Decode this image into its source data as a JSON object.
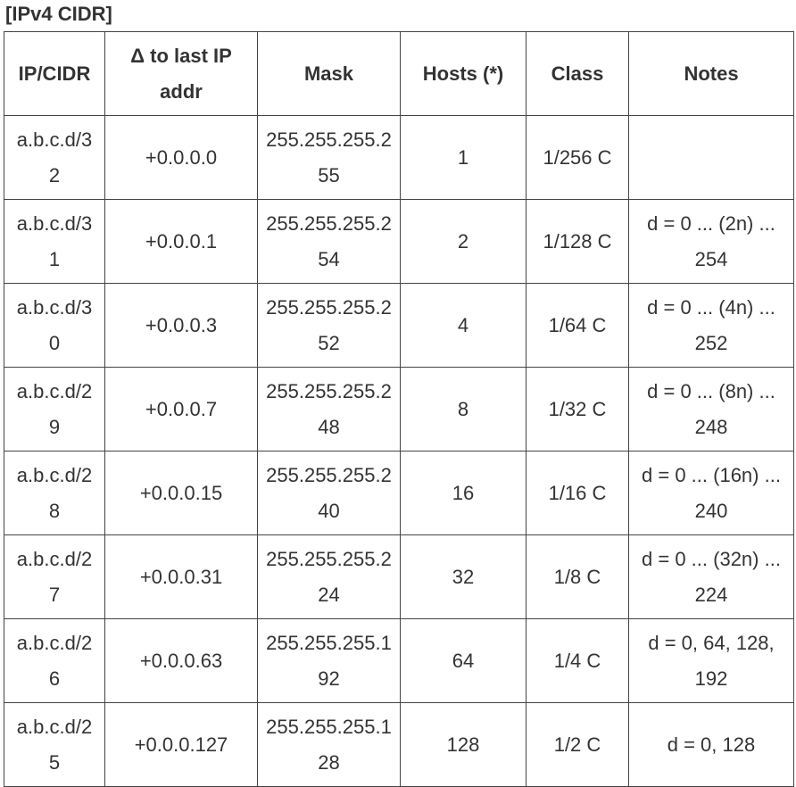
{
  "title": "[IPv4 CIDR]",
  "table": {
    "header": [
      "IP/CIDR",
      "Δ to last IP addr",
      "Mask",
      "Hosts (*)",
      "Class",
      "Notes"
    ],
    "rows": [
      [
        "a.b.c.d/32",
        "+0.0.0.0",
        "255.255.255.255",
        "1",
        "1/256 C",
        ""
      ],
      [
        "a.b.c.d/31",
        "+0.0.0.1",
        "255.255.255.254",
        "2",
        "1/128 C",
        "d = 0 ... (2n) ... 254"
      ],
      [
        "a.b.c.d/30",
        "+0.0.0.3",
        "255.255.255.252",
        "4",
        "1/64 C",
        "d = 0 ... (4n) ... 252"
      ],
      [
        "a.b.c.d/29",
        "+0.0.0.7",
        "255.255.255.248",
        "8",
        "1/32 C",
        "d = 0 ... (8n) ... 248"
      ],
      [
        "a.b.c.d/28",
        "+0.0.0.15",
        "255.255.255.240",
        "16",
        "1/16 C",
        "d = 0 ... (16n) ... 240"
      ],
      [
        "a.b.c.d/27",
        "+0.0.0.31",
        "255.255.255.224",
        "32",
        "1/8 C",
        "d = 0 ... (32n) ... 224"
      ],
      [
        "a.b.c.d/26",
        "+0.0.0.63",
        "255.255.255.192",
        "64",
        "1/4 C",
        "d = 0, 64, 128, 192"
      ],
      [
        "a.b.c.d/25",
        "+0.0.0.127",
        "255.255.255.128",
        "128",
        "1/2 C",
        "d = 0, 128"
      ]
    ]
  }
}
